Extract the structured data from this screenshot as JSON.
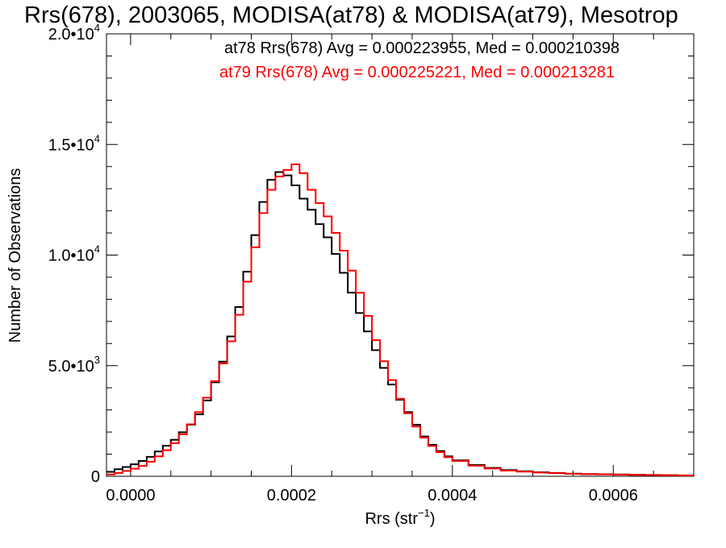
{
  "chart_data": {
    "type": "line",
    "title": "Rrs(678), 2003065, MODISA(at78) & MODISA(at79), Mesotrop",
    "xlabel": "Rrs (str",
    "xlabel_sup": "−1",
    "xlabel_suffix": ")",
    "ylabel": "Number of Observations",
    "xlim": [
      -3e-05,
      0.0007
    ],
    "ylim": [
      0,
      20000
    ],
    "grid": false,
    "x_ticks": [
      {
        "value": 0.0,
        "label": "0.0000"
      },
      {
        "value": 0.0002,
        "label": "0.0002"
      },
      {
        "value": 0.0004,
        "label": "0.0004"
      },
      {
        "value": 0.0006,
        "label": "0.0006"
      }
    ],
    "y_ticks": [
      {
        "value": 0,
        "mantissa": "0",
        "exp": ""
      },
      {
        "value": 5000,
        "mantissa": "5.0•10",
        "exp": "3"
      },
      {
        "value": 10000,
        "mantissa": "1.0•10",
        "exp": "4"
      },
      {
        "value": 15000,
        "mantissa": "1.5•10",
        "exp": "4"
      },
      {
        "value": 20000,
        "mantissa": "2.0•10",
        "exp": "4"
      }
    ],
    "annotations": [
      {
        "text": "at78 Rrs(678) Avg = 0.000223955, Med = 0.000210398",
        "color": "#000000"
      },
      {
        "text": "at79 Rrs(678) Avg = 0.000225221, Med = 0.000213281",
        "color": "#ff0000"
      }
    ],
    "series": [
      {
        "color": "#000000",
        "x": [
          -3e-05,
          -2e-05,
          -1e-05,
          0.0,
          1e-05,
          2e-05,
          3e-05,
          4e-05,
          5e-05,
          6e-05,
          7e-05,
          8e-05,
          9e-05,
          0.0001,
          0.00011,
          0.00012,
          0.00013,
          0.00014,
          0.00015,
          0.00016,
          0.00017,
          0.00018,
          0.00019,
          0.0002,
          0.00021,
          0.00022,
          0.00023,
          0.00024,
          0.00025,
          0.00026,
          0.00027,
          0.00028,
          0.00029,
          0.0003,
          0.00031,
          0.00032,
          0.00033,
          0.00034,
          0.00035,
          0.00036,
          0.00037,
          0.00038,
          0.00039,
          0.0004,
          0.00042,
          0.00044,
          0.00046,
          0.00048,
          0.0005,
          0.00052,
          0.00054,
          0.00056,
          0.00058,
          0.0006,
          0.00062,
          0.00064,
          0.00066,
          0.00068,
          0.0007
        ],
        "y": [
          200,
          320,
          420,
          540,
          690,
          880,
          1120,
          1380,
          1650,
          1990,
          2330,
          2800,
          3430,
          4250,
          5180,
          6320,
          7650,
          9250,
          10900,
          12400,
          13400,
          13750,
          13600,
          13150,
          12550,
          12050,
          11400,
          10800,
          10050,
          9200,
          8300,
          7380,
          6550,
          5700,
          4900,
          4150,
          3460,
          2900,
          2330,
          1800,
          1420,
          1140,
          900,
          720,
          510,
          380,
          280,
          230,
          180,
          150,
          120,
          100,
          90,
          80,
          70,
          60,
          50,
          40,
          30
        ]
      },
      {
        "color": "#ff0000",
        "x": [
          -3e-05,
          -2e-05,
          -1e-05,
          0.0,
          1e-05,
          2e-05,
          3e-05,
          4e-05,
          5e-05,
          6e-05,
          7e-05,
          8e-05,
          9e-05,
          0.0001,
          0.00011,
          0.00012,
          0.00013,
          0.00014,
          0.00015,
          0.00016,
          0.00017,
          0.00018,
          0.00019,
          0.0002,
          0.00021,
          0.00022,
          0.00023,
          0.00024,
          0.00025,
          0.00026,
          0.00027,
          0.00028,
          0.00029,
          0.0003,
          0.00031,
          0.00032,
          0.00033,
          0.00034,
          0.00035,
          0.00036,
          0.00037,
          0.00038,
          0.00039,
          0.0004,
          0.00042,
          0.00044,
          0.00046,
          0.00048,
          0.0005,
          0.00052,
          0.00054,
          0.00056,
          0.00058,
          0.0006,
          0.00062,
          0.00064,
          0.00066,
          0.00068,
          0.0007
        ],
        "y": [
          80,
          150,
          240,
          340,
          470,
          660,
          900,
          1180,
          1500,
          1900,
          2350,
          2900,
          3550,
          4300,
          5100,
          6100,
          7300,
          8800,
          10350,
          11900,
          12950,
          13550,
          13850,
          14100,
          13700,
          12950,
          12350,
          11750,
          11000,
          10200,
          9300,
          8300,
          7250,
          6150,
          5200,
          4350,
          3500,
          2850,
          2250,
          1750,
          1370,
          1090,
          860,
          690,
          480,
          350,
          260,
          210,
          170,
          140,
          110,
          95,
          85,
          75,
          65,
          55,
          45,
          35,
          25
        ]
      }
    ]
  }
}
